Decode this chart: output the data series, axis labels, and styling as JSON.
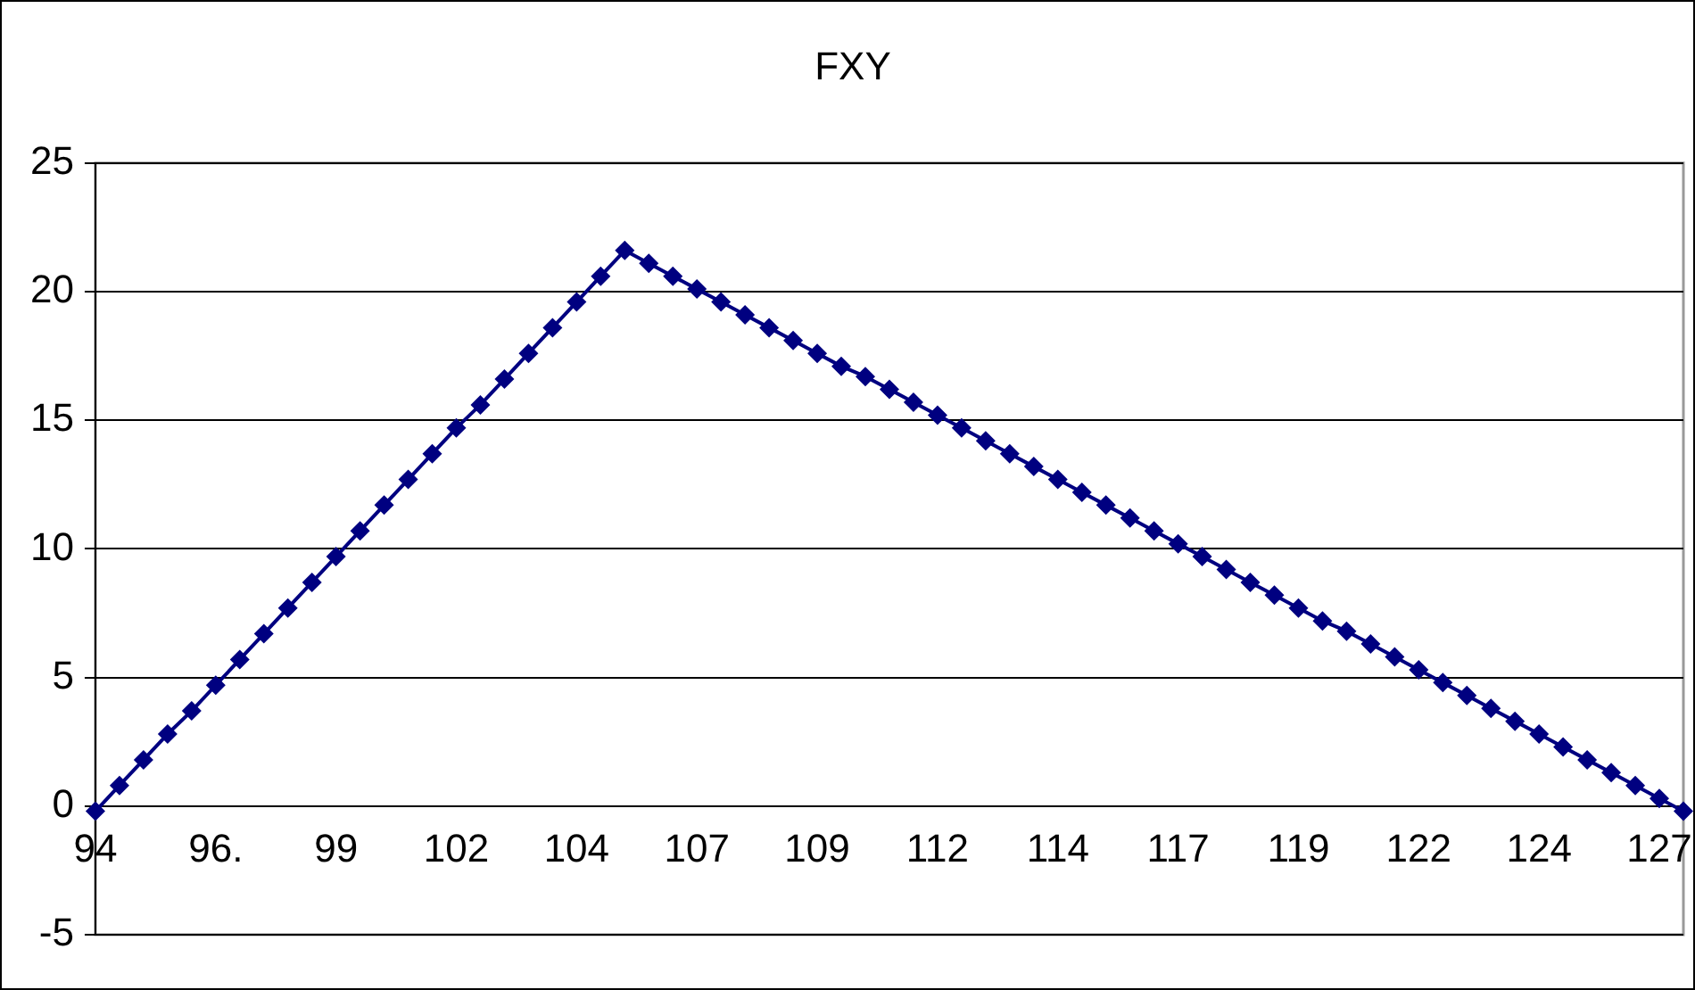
{
  "chart_data": {
    "type": "line",
    "title": "FXY",
    "categories": [
      "94",
      null,
      null,
      null,
      null,
      "96.",
      null,
      null,
      null,
      null,
      "99",
      null,
      null,
      null,
      null,
      "102",
      null,
      null,
      null,
      null,
      "104",
      null,
      null,
      null,
      null,
      "107",
      null,
      null,
      null,
      null,
      "109",
      null,
      null,
      null,
      null,
      "112",
      null,
      null,
      null,
      null,
      "114",
      null,
      null,
      null,
      null,
      "117",
      null,
      null,
      null,
      null,
      "119",
      null,
      null,
      null,
      null,
      "122",
      null,
      null,
      null,
      null,
      "124",
      null,
      null,
      null,
      null,
      "127",
      null
    ],
    "series": [
      {
        "color": "#000080",
        "values": [
          -0.2,
          0.8,
          1.8,
          2.8,
          3.7,
          4.7,
          5.7,
          6.7,
          7.7,
          8.7,
          9.7,
          10.7,
          11.7,
          12.7,
          13.7,
          14.7,
          15.6,
          16.6,
          17.6,
          18.6,
          19.6,
          20.6,
          21.6,
          21.1,
          20.6,
          20.1,
          19.6,
          19.1,
          18.6,
          18.1,
          17.6,
          17.1,
          16.7,
          16.2,
          15.7,
          15.2,
          14.7,
          14.2,
          13.7,
          13.2,
          12.7,
          12.2,
          11.7,
          11.2,
          10.7,
          10.2,
          9.7,
          9.2,
          8.7,
          8.2,
          7.7,
          7.2,
          6.8,
          6.3,
          5.8,
          5.3,
          4.8,
          4.3,
          3.8,
          3.3,
          2.8,
          2.3,
          1.8,
          1.3,
          0.8,
          0.3,
          -0.2
        ]
      }
    ],
    "ylim": [
      -5,
      25
    ],
    "yticks": [
      -5,
      0,
      5,
      10,
      15,
      20,
      25
    ],
    "grid": "y",
    "legend": false,
    "marker": "diamond",
    "line_style": "solid"
  }
}
